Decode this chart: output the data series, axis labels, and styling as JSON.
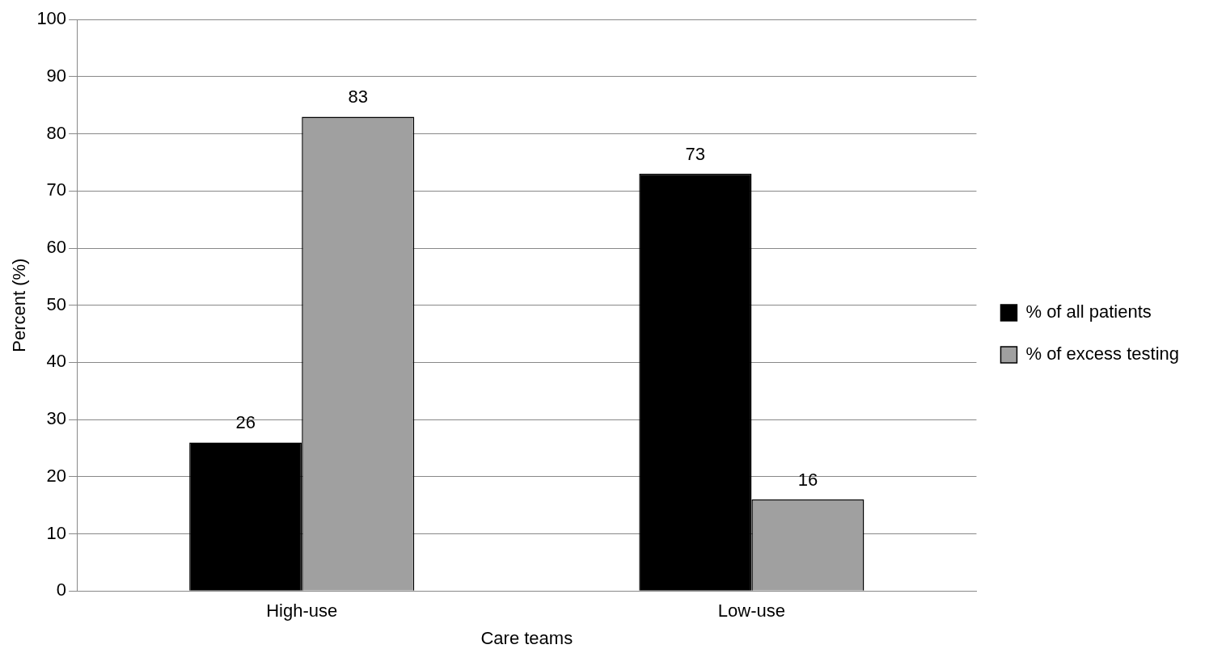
{
  "chart_data": {
    "type": "bar",
    "xlabel": "Care teams",
    "ylabel": "Percent (%)",
    "categories": [
      "High-use",
      "Low-use"
    ],
    "series": [
      {
        "name": "% of all patients",
        "color": "#000000",
        "values": [
          26,
          73
        ]
      },
      {
        "name": "% of excess testing",
        "color": "#a0a0a0",
        "values": [
          83,
          16
        ]
      }
    ],
    "ylim": [
      0,
      100
    ],
    "yticks": [
      0,
      10,
      20,
      30,
      40,
      50,
      60,
      70,
      80,
      90,
      100
    ],
    "grid": "y",
    "legend": "right",
    "data_labels": true
  }
}
